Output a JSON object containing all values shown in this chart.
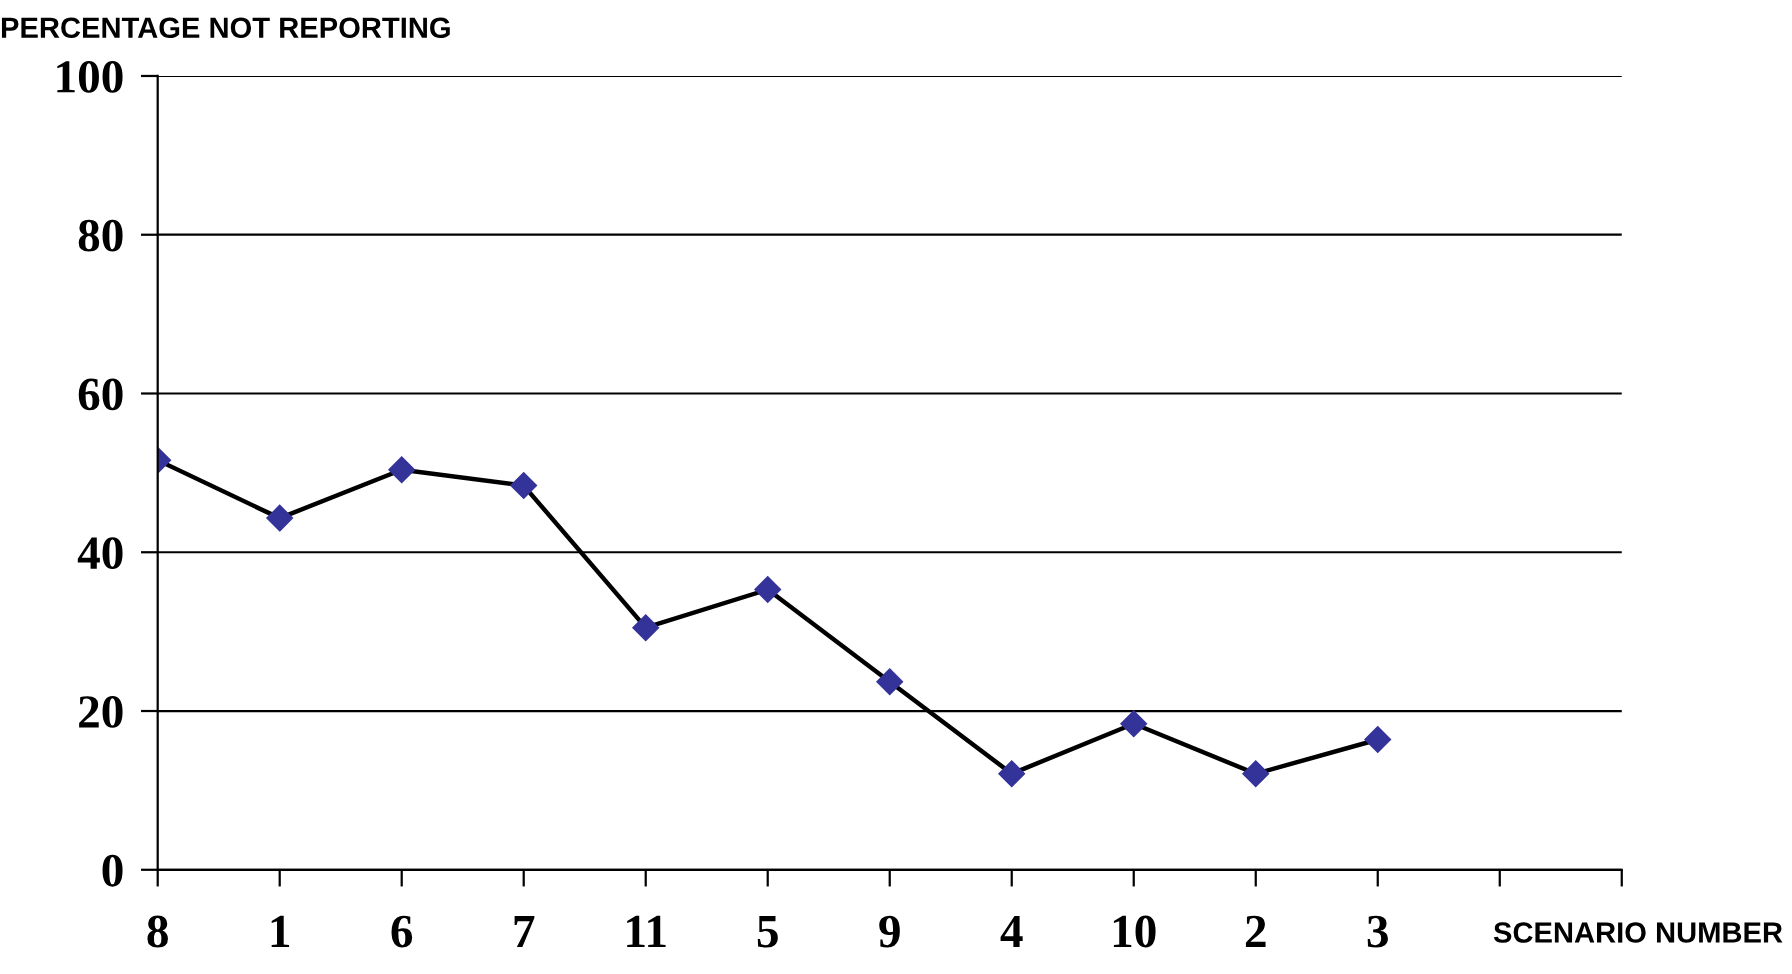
{
  "chart_data": {
    "type": "line",
    "ylabel": "PERCENTAGE NOT REPORTING",
    "xlabel": "SCENARIO NUMBER",
    "categories": [
      "8",
      "1",
      "6",
      "7",
      "11",
      "5",
      "9",
      "4",
      "10",
      "2",
      "3",
      null,
      null
    ],
    "series": [
      {
        "color": "#333399",
        "values": [
          51.6,
          44.3,
          50.4,
          48.4,
          30.5,
          35.3,
          23.7,
          12.1,
          18.4,
          12.1,
          16.4,
          null,
          null
        ]
      }
    ],
    "ylim": [
      0,
      100
    ],
    "yticks": [
      0,
      20,
      40,
      60,
      80,
      100
    ],
    "grid": "y",
    "marker": "diamond",
    "line_style": "solid",
    "legend": false
  }
}
